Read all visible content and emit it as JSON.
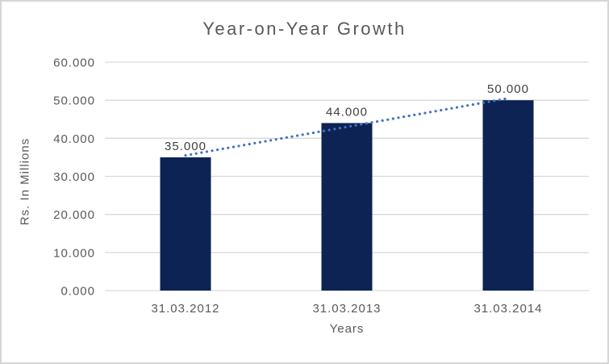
{
  "chart_data": {
    "type": "bar",
    "title": "Year-on-Year Growth",
    "xlabel": "Years",
    "ylabel": "Rs. In Millions",
    "categories": [
      "31.03.2012",
      "31.03.2013",
      "31.03.2014"
    ],
    "values": [
      35,
      44,
      50
    ],
    "data_labels": [
      "35.000",
      "44.000",
      "50.000"
    ],
    "yticks": [
      0,
      10,
      20,
      30,
      40,
      50,
      60
    ],
    "ytick_labels": [
      "0.000",
      "10.000",
      "20.000",
      "30.000",
      "40.000",
      "50.000",
      "60.000"
    ],
    "ylim": [
      0,
      60
    ],
    "grid": true,
    "legend": "none",
    "bar_color": "#0c2354",
    "trendline": {
      "type": "linear",
      "style": "dotted",
      "color": "#4472c4",
      "from_value": 35.5,
      "to_value": 50.5
    },
    "colors": {
      "grid": "#d9d9d9",
      "axis_line": "#d9d9d9",
      "axis_text": "#595959",
      "data_label": "#404040",
      "title_text": "#595959",
      "border": "#d6d6d6",
      "background": "#ffffff"
    }
  }
}
